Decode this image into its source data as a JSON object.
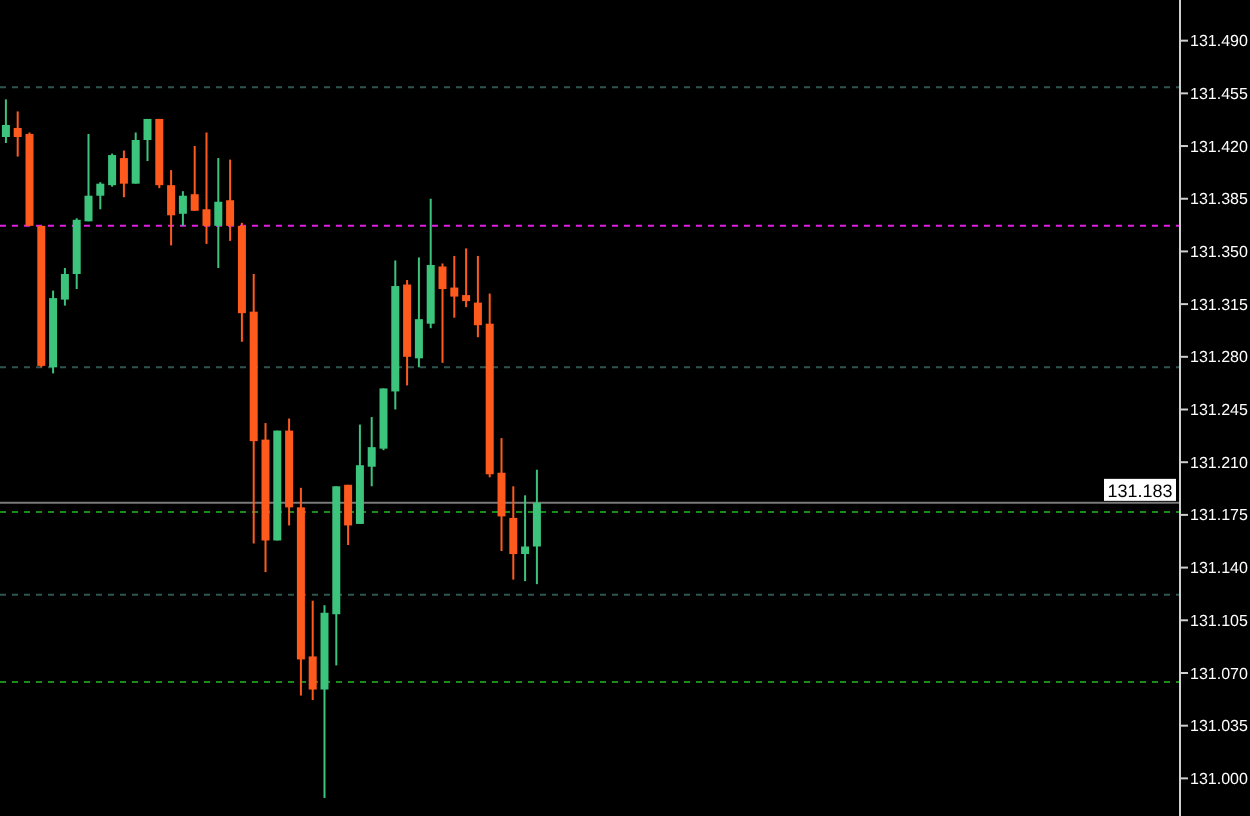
{
  "chart_data": {
    "type": "candlestick",
    "categories": [
      null,
      null,
      null,
      null,
      null,
      null,
      null,
      null,
      null,
      null,
      null,
      null,
      null,
      null,
      null,
      null,
      null,
      null,
      null,
      null,
      null,
      null,
      null,
      null,
      null,
      null,
      null,
      null,
      null,
      null,
      null,
      null,
      null,
      null,
      null,
      null,
      null,
      null,
      null,
      null,
      null,
      null,
      null,
      null,
      null,
      null,
      null,
      null,
      null,
      null,
      null,
      null,
      null,
      null,
      null,
      null,
      null,
      null,
      null,
      null,
      null,
      null,
      null,
      null,
      null,
      null,
      null,
      null,
      null,
      null,
      null,
      null,
      null,
      null,
      null,
      null,
      null,
      null,
      null,
      null,
      null,
      null,
      null,
      null,
      null,
      null,
      null,
      null,
      null,
      null,
      null,
      null,
      null,
      null,
      null,
      null,
      null,
      null,
      null,
      null
    ],
    "ohlc": [
      [
        131.426,
        131.451,
        131.422,
        131.434
      ],
      [
        131.432,
        131.443,
        131.413,
        131.426
      ],
      [
        131.428,
        131.429,
        131.367,
        131.367
      ],
      [
        131.367,
        131.367,
        131.273,
        131.274
      ],
      [
        131.273,
        131.324,
        131.269,
        131.319
      ],
      [
        131.318,
        131.339,
        131.314,
        131.335
      ],
      [
        131.335,
        131.372,
        131.325,
        131.371
      ],
      [
        131.37,
        131.428,
        131.37,
        131.387
      ],
      [
        131.387,
        131.396,
        131.378,
        131.395
      ],
      [
        131.394,
        131.415,
        131.393,
        131.414
      ],
      [
        131.412,
        131.417,
        131.386,
        131.395
      ],
      [
        131.395,
        131.429,
        131.395,
        131.424
      ],
      [
        131.424,
        131.438,
        131.41,
        131.438
      ],
      [
        131.438,
        131.438,
        131.392,
        131.394
      ],
      [
        131.394,
        131.404,
        131.354,
        131.374
      ],
      [
        131.375,
        131.39,
        131.367,
        131.387
      ],
      [
        131.388,
        131.42,
        131.377,
        131.377
      ],
      [
        131.378,
        131.429,
        131.355,
        131.367
      ],
      [
        131.367,
        131.412,
        131.339,
        131.383
      ],
      [
        131.384,
        131.411,
        131.357,
        131.367
      ],
      [
        131.367,
        131.369,
        131.29,
        131.309
      ],
      [
        131.31,
        131.335,
        131.156,
        131.224
      ],
      [
        131.225,
        131.236,
        131.137,
        131.158
      ],
      [
        131.158,
        131.231,
        131.158,
        131.231
      ],
      [
        131.231,
        131.239,
        131.168,
        131.18
      ],
      [
        131.18,
        131.193,
        131.055,
        131.079
      ],
      [
        131.081,
        131.118,
        131.052,
        131.059
      ],
      [
        131.059,
        131.115,
        130.987,
        131.11
      ],
      [
        131.109,
        131.194,
        131.075,
        131.194
      ],
      [
        131.195,
        131.195,
        131.155,
        131.168
      ],
      [
        131.169,
        131.235,
        131.169,
        131.208
      ],
      [
        131.207,
        131.24,
        131.194,
        131.22
      ],
      [
        131.219,
        131.259,
        131.218,
        131.259
      ],
      [
        131.257,
        131.344,
        131.245,
        131.327
      ],
      [
        131.328,
        131.331,
        131.261,
        131.28
      ],
      [
        131.279,
        131.346,
        131.273,
        131.305
      ],
      [
        131.302,
        131.385,
        131.299,
        131.341
      ],
      [
        131.34,
        131.342,
        131.276,
        131.325
      ],
      [
        131.326,
        131.347,
        131.306,
        131.32
      ],
      [
        131.321,
        131.352,
        131.313,
        131.317
      ],
      [
        131.316,
        131.347,
        131.293,
        131.301
      ],
      [
        131.302,
        131.322,
        131.2,
        131.202
      ],
      [
        131.203,
        131.226,
        131.151,
        131.174
      ],
      [
        131.173,
        131.194,
        131.132,
        131.149
      ],
      [
        131.149,
        131.188,
        131.131,
        131.154
      ],
      [
        131.154,
        131.205,
        131.129,
        131.183
      ],
      null,
      null,
      null,
      null,
      null,
      null,
      null,
      null,
      null,
      null,
      null,
      null,
      null,
      null,
      null,
      null,
      null,
      null,
      null,
      null,
      null,
      null,
      null,
      null,
      null,
      null,
      null,
      null,
      null,
      null,
      null,
      null,
      null,
      null,
      null,
      null,
      null,
      null,
      null,
      null,
      null,
      null,
      null,
      null,
      null,
      null,
      null,
      null,
      null,
      null,
      null,
      null,
      null,
      null
    ],
    "colors": [
      "#3cc47c",
      "#ff5a1e",
      "#ff5a1e",
      "#ff5a1e",
      "#3cc47c",
      "#3cc47c",
      "#3cc47c",
      "#3cc47c",
      "#3cc47c",
      "#3cc47c",
      "#ff5a1e",
      "#3cc47c",
      "#3cc47c",
      "#ff5a1e",
      "#ff5a1e",
      "#3cc47c",
      "#ff5a1e",
      "#ff5a1e",
      "#3cc47c",
      "#ff5a1e",
      "#ff5a1e",
      "#ff5a1e",
      "#ff5a1e",
      "#3cc47c",
      "#ff5a1e",
      "#ff5a1e",
      "#ff5a1e",
      "#3cc47c",
      "#3cc47c",
      "#ff5a1e",
      "#3cc47c",
      "#3cc47c",
      "#3cc47c",
      "#3cc47c",
      "#ff5a1e",
      "#3cc47c",
      "#3cc47c",
      "#ff5a1e",
      "#ff5a1e",
      "#ff5a1e",
      "#ff5a1e",
      "#ff5a1e",
      "#ff5a1e",
      "#ff5a1e",
      "#3cc47c",
      "#3cc47c",
      null,
      null,
      null,
      null,
      null,
      null,
      null,
      null,
      null,
      null,
      null,
      null,
      null,
      null,
      null,
      null,
      null,
      null,
      null,
      null,
      null,
      null,
      null,
      null,
      null,
      null,
      null,
      null,
      null,
      null,
      null,
      null,
      null,
      null,
      null,
      null,
      null,
      null,
      null,
      null,
      null,
      null,
      null,
      null,
      null,
      null,
      null,
      null,
      null,
      null,
      null,
      null,
      null,
      null
    ],
    "ylim": [
      130.975,
      131.517
    ],
    "yticks": [
      {
        "value": 131.0,
        "label": "131.000"
      },
      {
        "value": 131.035,
        "label": "131.035"
      },
      {
        "value": 131.07,
        "label": "131.070"
      },
      {
        "value": 131.105,
        "label": "131.105"
      },
      {
        "value": 131.14,
        "label": "131.140"
      },
      {
        "value": 131.175,
        "label": "131.175"
      },
      {
        "value": 131.21,
        "label": "131.210"
      },
      {
        "value": 131.245,
        "label": "131.245"
      },
      {
        "value": 131.28,
        "label": "131.280"
      },
      {
        "value": 131.315,
        "label": "131.315"
      },
      {
        "value": 131.35,
        "label": "131.350"
      },
      {
        "value": 131.385,
        "label": "131.385"
      },
      {
        "value": 131.42,
        "label": "131.420"
      },
      {
        "value": 131.455,
        "label": "131.455"
      },
      {
        "value": 131.49,
        "label": "131.490"
      }
    ],
    "ref_lines": [
      {
        "axis": "y",
        "value": 131.459,
        "color": "#2e5550",
        "line_style": "dashed"
      },
      {
        "axis": "y",
        "value": 131.367,
        "color": "#e020e0",
        "line_style": "dashed"
      },
      {
        "axis": "y",
        "value": 131.273,
        "color": "#2e5550",
        "line_style": "dashed"
      },
      {
        "axis": "y",
        "value": 131.183,
        "color": "#7a7a7a",
        "line_style": "solid",
        "label": "131.183"
      },
      {
        "axis": "y",
        "value": 131.177,
        "color": "#1a8c1a",
        "line_style": "dashed"
      },
      {
        "axis": "y",
        "value": 131.122,
        "color": "#2e5550",
        "line_style": "dashed"
      },
      {
        "axis": "y",
        "value": 131.064,
        "color": "#1a8c1a",
        "line_style": "dashed"
      }
    ],
    "grid": false
  }
}
